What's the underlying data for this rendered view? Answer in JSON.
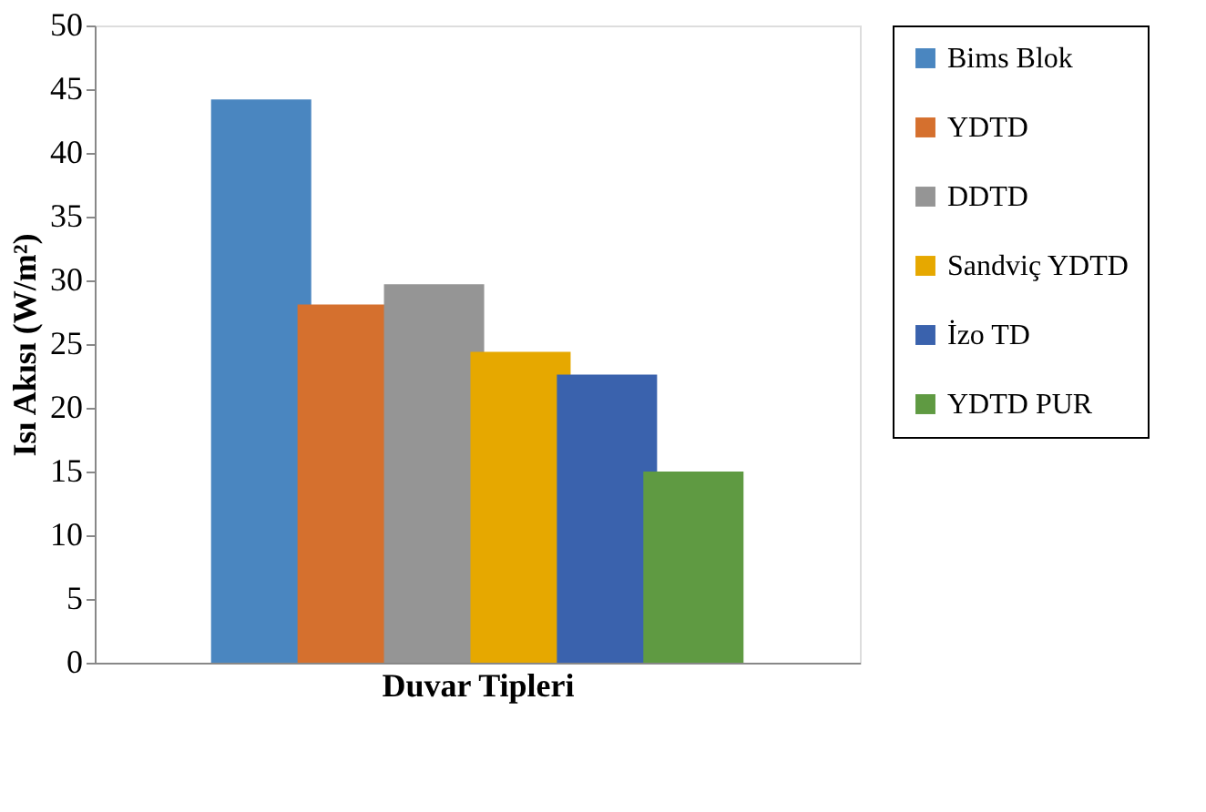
{
  "chart_data": {
    "type": "bar",
    "xlabel": "Duvar Tipleri",
    "ylabel": "Isı  Akısı (W/m²)",
    "categories": [
      null
    ],
    "series": [
      {
        "name": "Bims Blok",
        "color": "#4a86c0",
        "values": [
          44.2
        ]
      },
      {
        "name": "YDTD",
        "color": "#d5702e",
        "values": [
          28.1
        ]
      },
      {
        "name": "DDTD",
        "color": "#959595",
        "values": [
          29.7
        ]
      },
      {
        "name": "Sandviç YDTD",
        "color": "#e6a800",
        "values": [
          24.4
        ]
      },
      {
        "name": "İzo TD",
        "color": "#3a62ad",
        "values": [
          22.6
        ]
      },
      {
        "name": "YDTD PUR",
        "color": "#5f9a42",
        "values": [
          15.0
        ]
      }
    ],
    "ylim": [
      0,
      50
    ],
    "yticks": [
      0,
      5,
      10,
      15,
      20,
      25,
      30,
      35,
      40,
      45,
      50
    ],
    "grid": false,
    "legend": "right",
    "tick_labels": "y"
  }
}
